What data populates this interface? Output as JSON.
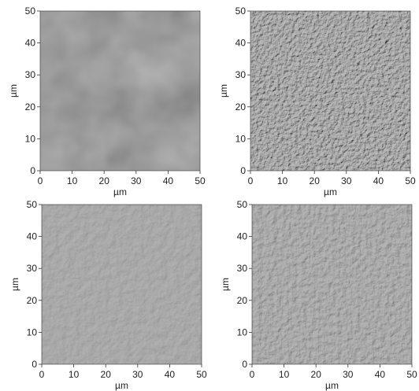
{
  "figure": {
    "panels": [
      {
        "id": "top-left",
        "xlabel": "µm",
        "ylabel": "µm",
        "xlim": [
          0,
          50
        ],
        "ylim": [
          0,
          50
        ],
        "x_ticks": [
          "0",
          "10",
          "20",
          "30",
          "40",
          "50"
        ],
        "y_ticks": [
          "0",
          "10",
          "20",
          "30",
          "40",
          "50"
        ],
        "texture": "smooth",
        "base_color": "#777777"
      },
      {
        "id": "top-right",
        "xlabel": "µm",
        "ylabel": "µm",
        "xlim": [
          0,
          50
        ],
        "ylim": [
          0,
          50
        ],
        "x_ticks": [
          "0",
          "10",
          "20",
          "30",
          "40",
          "50"
        ],
        "y_ticks": [
          "0",
          "10",
          "20",
          "30",
          "40",
          "50"
        ],
        "texture": "rough",
        "base_color": "#6f6f6f"
      },
      {
        "id": "bottom-left",
        "xlabel": "µm",
        "ylabel": "µm",
        "xlim": [
          0,
          50
        ],
        "ylim": [
          0,
          50
        ],
        "x_ticks": [
          "0",
          "10",
          "20",
          "30",
          "40",
          "50"
        ],
        "y_ticks": [
          "0",
          "10",
          "20",
          "30",
          "40",
          "50"
        ],
        "texture": "medium",
        "base_color": "#757575"
      },
      {
        "id": "bottom-right",
        "xlabel": "µm",
        "ylabel": "µm",
        "xlim": [
          0,
          50
        ],
        "ylim": [
          0,
          50
        ],
        "x_ticks": [
          "0",
          "10",
          "20",
          "30",
          "40",
          "50"
        ],
        "y_ticks": [
          "0",
          "10",
          "20",
          "30",
          "40",
          "50"
        ],
        "texture": "medium-rough",
        "base_color": "#727272"
      }
    ]
  }
}
